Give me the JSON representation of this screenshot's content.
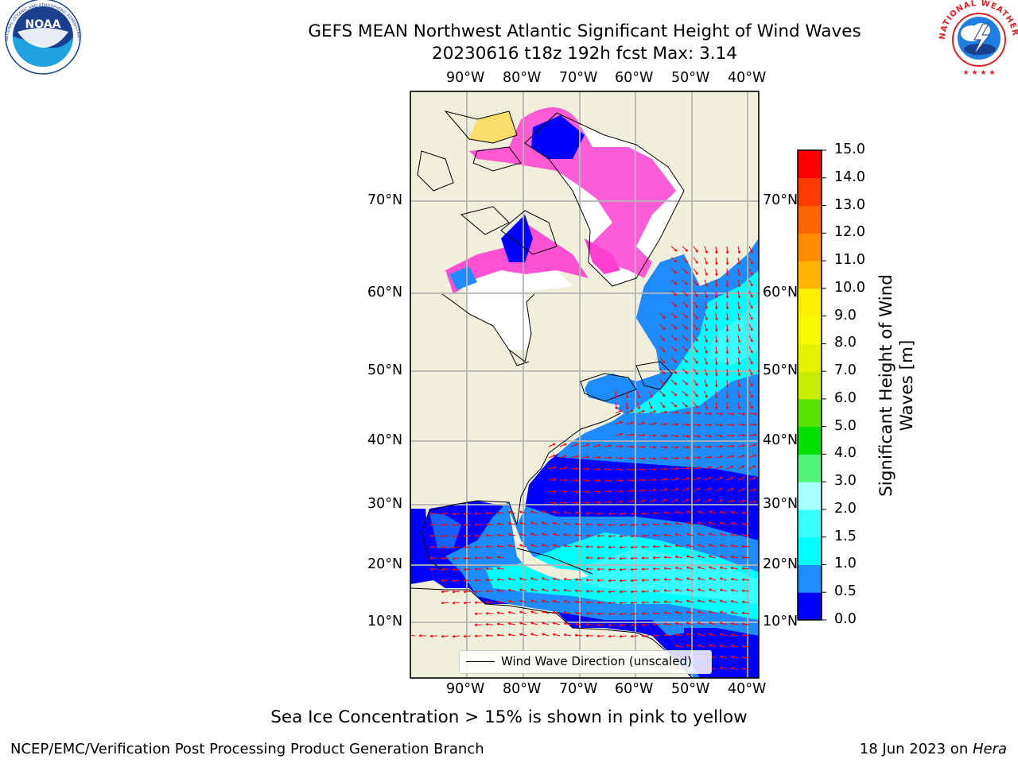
{
  "header": {
    "title": "GEFS MEAN Northwest Atlantic Significant Height of Wind Waves",
    "subtitle": "20230616 t18z 192h fcst   Max: 3.14"
  },
  "logos": {
    "left": {
      "icon": "noaa-logo-icon",
      "text": "NOAA",
      "ring_text": "NATIONAL OCEANIC AND ATMOSPHERIC ADMINISTRATION · U.S. DEPARTMENT OF COMMERCE"
    },
    "right": {
      "icon": "nws-logo-icon",
      "ring_text": "NATIONAL WEATHER SERVICE"
    }
  },
  "map": {
    "longitude_labels": [
      "90°W",
      "80°W",
      "70°W",
      "60°W",
      "50°W",
      "40°W"
    ],
    "latitude_labels": [
      "10°N",
      "20°N",
      "30°N",
      "40°N",
      "50°N",
      "60°N",
      "70°N"
    ],
    "legend_label": "Wind Wave Direction (unscaled)",
    "colors": {
      "land": "#efefdc",
      "ice": "#ffffff",
      "ice_pink": "#ff3fd0",
      "ice_yellow": "#ffd21c",
      "arrow": "#ff0000"
    }
  },
  "colorbar": {
    "label": "Significant Height of Wind Waves [m]",
    "label_line1": "Significant Height of Wind",
    "label_line2": "Waves [m]",
    "ticks": [
      "0.0",
      "0.5",
      "1.0",
      "1.5",
      "2.0",
      "3.0",
      "4.0",
      "5.0",
      "6.0",
      "7.0",
      "8.0",
      "9.0",
      "10.0",
      "11.0",
      "12.0",
      "13.0",
      "14.0",
      "15.0"
    ],
    "colors": [
      "#0000ff",
      "#1e8cff",
      "#00ffff",
      "#38ffff",
      "#a8ffff",
      "#50f578",
      "#00e000",
      "#58e000",
      "#c8ee00",
      "#e6f200",
      "#f8f800",
      "#fff000",
      "#ffb400",
      "#ff8c00",
      "#ff6400",
      "#ff3c00",
      "#ff0000"
    ]
  },
  "footnote": "Sea Ice Concentration > 15% is shown in pink to yellow",
  "credits": {
    "left": "NCEP/EMC/Verification Post Processing Product Generation Branch",
    "right_prefix": "18 Jun 2023 on ",
    "right_host": "Hera"
  }
}
